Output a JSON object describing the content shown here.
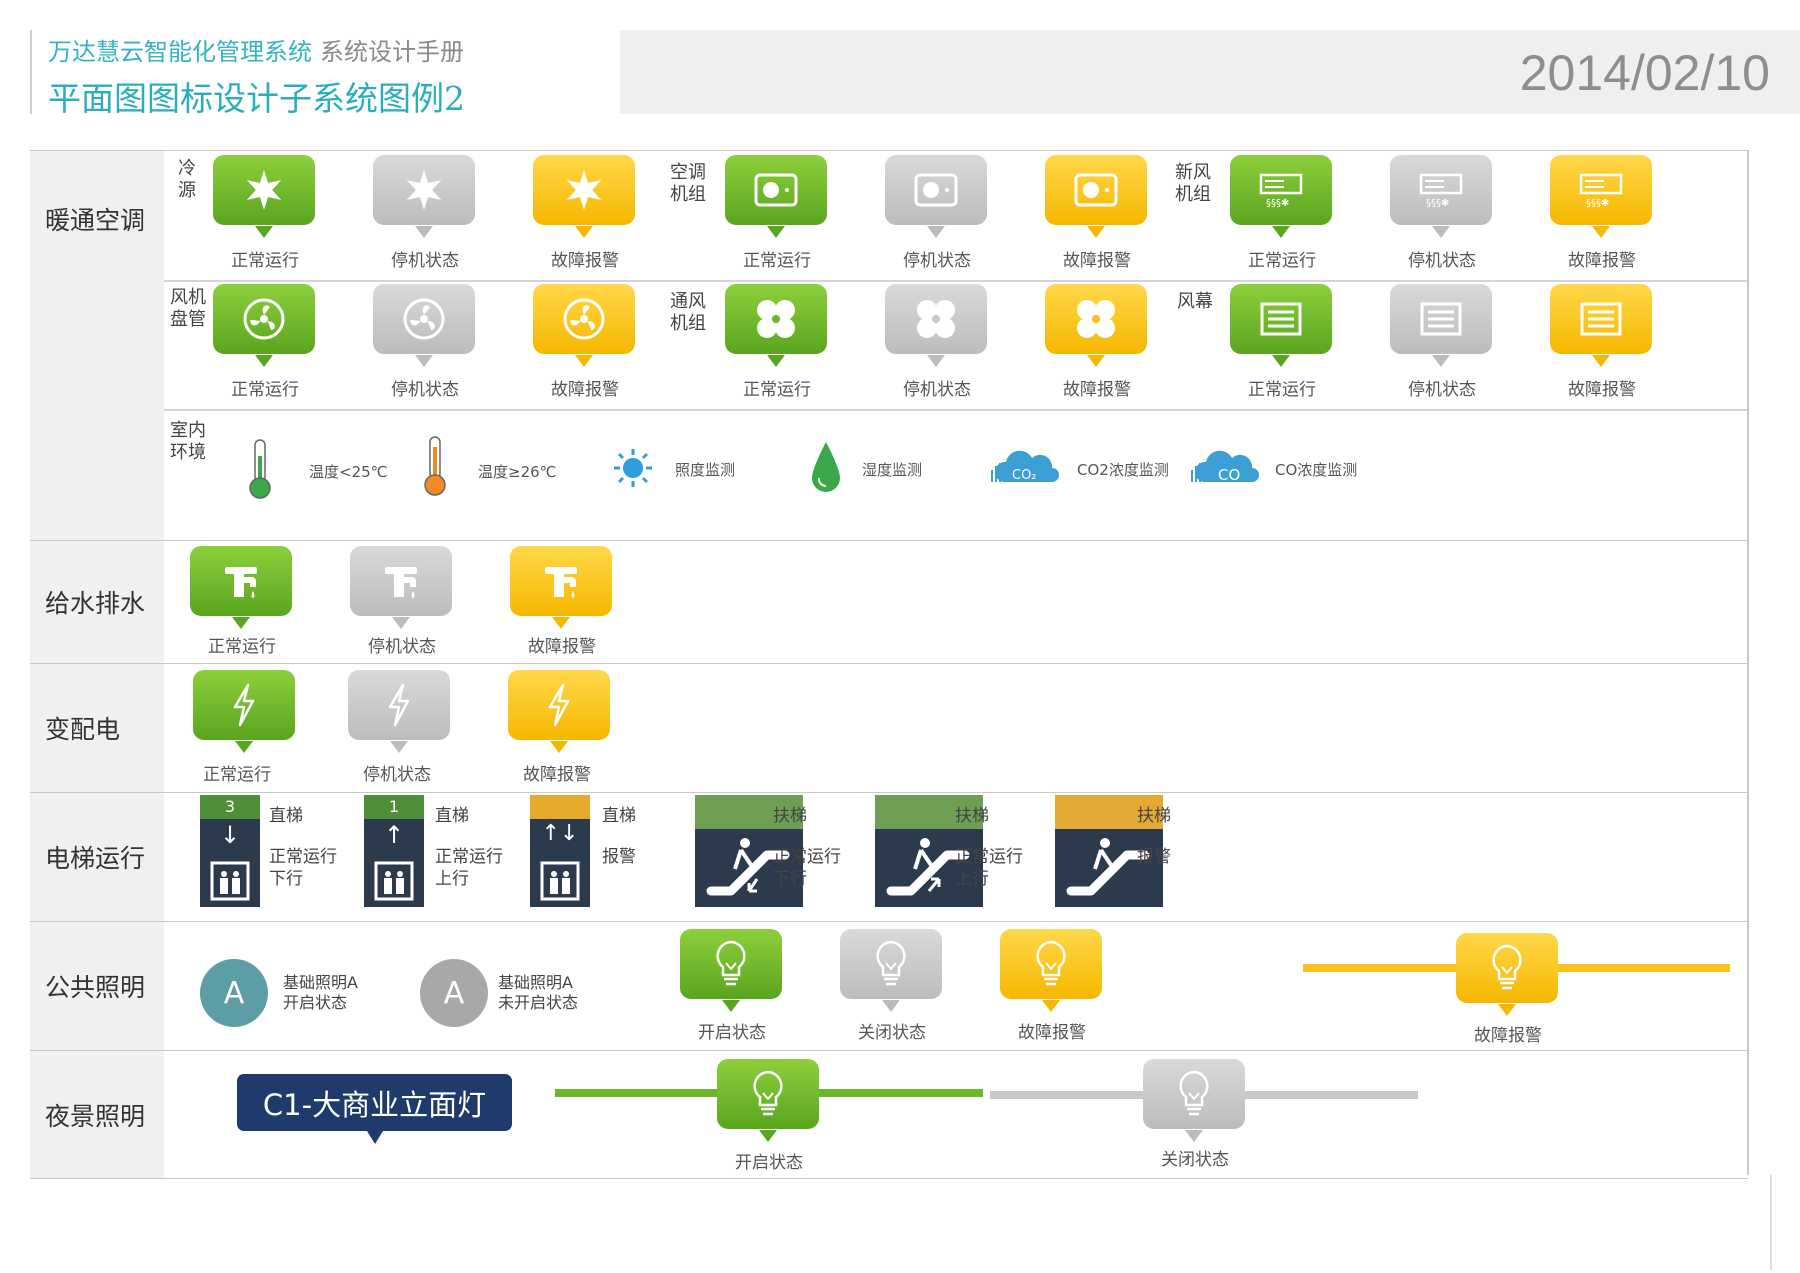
{
  "header": {
    "brand": "万达慧云智能化管理系统",
    "brand_sub": "系统设计手册",
    "subtitle": "平面图图标设计子系统图例2",
    "date": "2014/02/10"
  },
  "colors": {
    "green": "#6cb62a",
    "gray": "#c8c8c8",
    "yellow": "#f8c21a",
    "navy": "#1f3b6b",
    "teal": "#35b3c2"
  },
  "status": {
    "normal": "正常运行",
    "stopped": "停机状态",
    "fault": "故障报警",
    "on": "开启状态",
    "off": "关闭状态"
  },
  "sections": {
    "hvac": {
      "label": "暖通空调",
      "cats": {
        "cold": "冷\n源",
        "ac": "空调\n机组",
        "fresh": "新风\n机组",
        "fan_coil": "风机\n盘管",
        "vent": "通风\n机组",
        "curtain": "风幕",
        "indoor": "室内\n环境"
      },
      "env": {
        "temp_low": "温度<25℃",
        "temp_high": "温度≥26℃",
        "light": "照度监测",
        "humidity": "湿度监测",
        "co2": "CO2浓度监测",
        "co": "CO浓度监测",
        "co2_glyph": "CO₂",
        "co_glyph": "CO"
      }
    },
    "water": {
      "label": "给水排水"
    },
    "power": {
      "label": "变配电"
    },
    "elevator": {
      "label": "电梯运行",
      "items": [
        {
          "floor": "3",
          "arrow": "↓",
          "type": "直梯",
          "state": "正常运行\n下行"
        },
        {
          "floor": "1",
          "arrow": "↑",
          "type": "直梯",
          "state": "正常运行\n上行"
        },
        {
          "floor": "",
          "arrow": "↑↓",
          "type": "直梯",
          "state": "报警"
        },
        {
          "type": "扶梯",
          "state": "正常运行\n下行"
        },
        {
          "type": "扶梯",
          "state": "正常运行\n上行"
        },
        {
          "type": "扶梯",
          "state": "报警"
        }
      ]
    },
    "public_light": {
      "label": "公共照明",
      "circle_letter": "A",
      "basic_on": "基础照明A\n开启状态",
      "basic_off": "基础照明A\n未开启状态"
    },
    "night_light": {
      "label": "夜景照明",
      "tag": "C1-大商业立面灯"
    }
  }
}
